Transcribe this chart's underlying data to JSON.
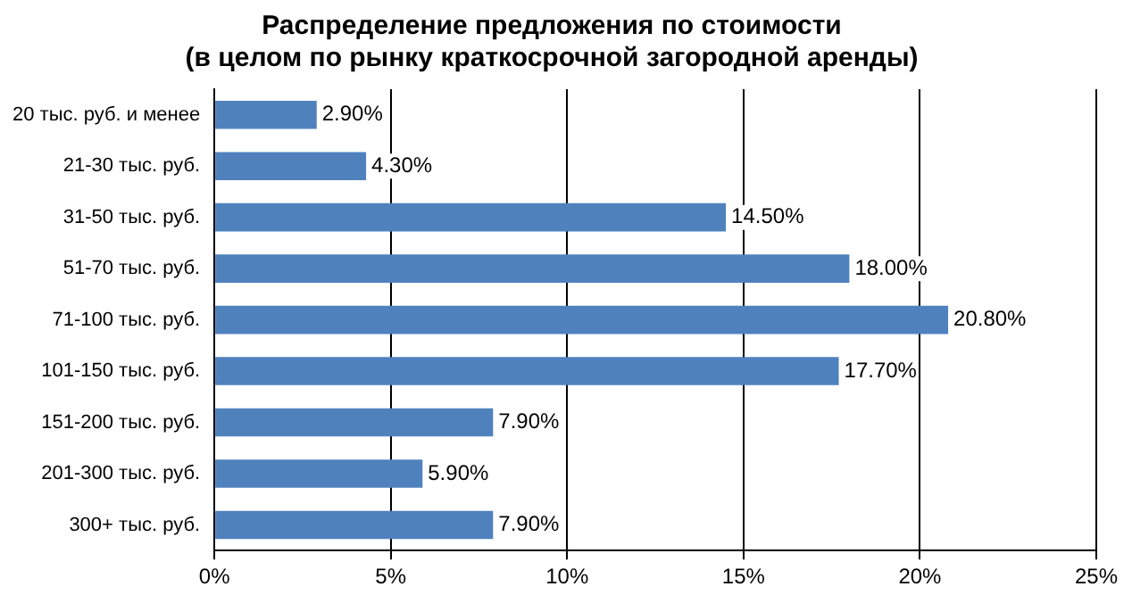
{
  "chart_data": {
    "type": "bar",
    "orientation": "horizontal",
    "title": "Распределение предложения по стоимости\n(в целом по рынку краткосрочной загородной аренды)",
    "categories": [
      "20 тыс. руб. и менее",
      "21-30 тыс. руб.",
      "31-50 тыс. руб.",
      "51-70 тыс. руб.",
      "71-100 тыс. руб.",
      "101-150 тыс. руб.",
      "151-200 тыс. руб.",
      "201-300 тыс. руб.",
      "300+ тыс. руб."
    ],
    "values": [
      2.9,
      4.3,
      14.5,
      18.0,
      20.8,
      17.7,
      7.9,
      5.9,
      7.9
    ],
    "value_labels": [
      "2.90%",
      "4.30%",
      "14.50%",
      "18.00%",
      "20.80%",
      "17.70%",
      "7.90%",
      "5.90%",
      "7.90%"
    ],
    "color": "#4f81bd",
    "xlim": [
      0,
      25
    ],
    "xticks": [
      {
        "value": 0,
        "label": "0%"
      },
      {
        "value": 5,
        "label": "5%"
      },
      {
        "value": 10,
        "label": "10%"
      },
      {
        "value": 15,
        "label": "15%"
      },
      {
        "value": 20,
        "label": "20%"
      },
      {
        "value": 25,
        "label": "25%"
      }
    ],
    "grid": "x",
    "legend": false
  }
}
